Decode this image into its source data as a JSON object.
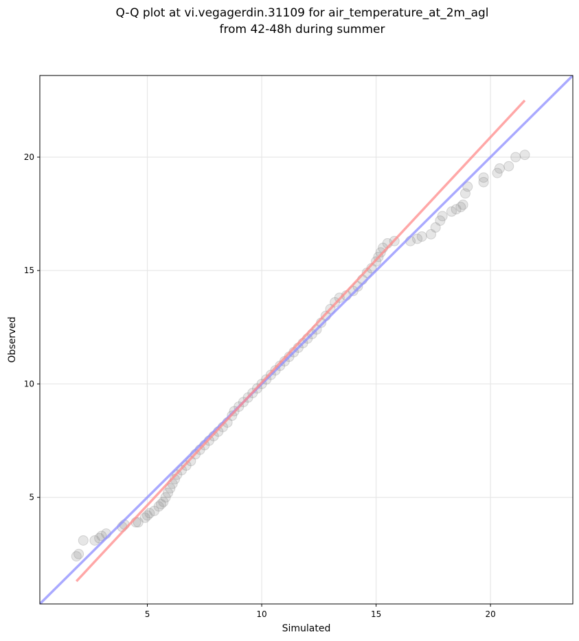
{
  "chart_data": {
    "type": "scatter",
    "title": [
      "Q-Q plot at vi.vegagerdin.31109 for air_temperature_at_2m_agl",
      "from 42-48h during summer"
    ],
    "xlabel": "Simulated",
    "ylabel": "Observed",
    "xlim": [
      0.3,
      23.6
    ],
    "ylim": [
      0.3,
      23.6
    ],
    "xticks": [
      5,
      10,
      15,
      20
    ],
    "yticks": [
      5,
      10,
      15,
      20
    ],
    "grid": true,
    "reference_lines": [
      {
        "kind": "identity",
        "color": "#8c8cff",
        "points": [
          [
            0.3,
            0.3
          ],
          [
            23.6,
            23.6
          ]
        ]
      },
      {
        "kind": "fit",
        "color": "#ff8a8a",
        "points": [
          [
            1.9,
            1.3
          ],
          [
            21.5,
            22.5
          ]
        ]
      }
    ],
    "point_color": "#808080",
    "quantile_points": [
      [
        1.9,
        2.4
      ],
      [
        2.0,
        2.5
      ],
      [
        2.2,
        3.1
      ],
      [
        2.7,
        3.1
      ],
      [
        2.9,
        3.2
      ],
      [
        3.0,
        3.3
      ],
      [
        3.2,
        3.4
      ],
      [
        3.9,
        3.7
      ],
      [
        4.0,
        3.8
      ],
      [
        4.5,
        3.9
      ],
      [
        4.6,
        3.9
      ],
      [
        4.9,
        4.1
      ],
      [
        5.0,
        4.2
      ],
      [
        5.1,
        4.3
      ],
      [
        5.3,
        4.4
      ],
      [
        5.5,
        4.6
      ],
      [
        5.6,
        4.7
      ],
      [
        5.7,
        4.8
      ],
      [
        5.8,
        5.0
      ],
      [
        5.9,
        5.2
      ],
      [
        6.0,
        5.4
      ],
      [
        6.1,
        5.6
      ],
      [
        6.2,
        5.8
      ],
      [
        6.3,
        6.0
      ],
      [
        6.5,
        6.2
      ],
      [
        6.7,
        6.4
      ],
      [
        6.9,
        6.6
      ],
      [
        7.1,
        6.9
      ],
      [
        7.3,
        7.1
      ],
      [
        7.5,
        7.3
      ],
      [
        7.7,
        7.5
      ],
      [
        7.9,
        7.7
      ],
      [
        8.1,
        7.9
      ],
      [
        8.3,
        8.1
      ],
      [
        8.5,
        8.3
      ],
      [
        8.7,
        8.6
      ],
      [
        8.8,
        8.8
      ],
      [
        9.0,
        9.0
      ],
      [
        9.2,
        9.2
      ],
      [
        9.4,
        9.4
      ],
      [
        9.6,
        9.6
      ],
      [
        9.8,
        9.8
      ],
      [
        10.0,
        10.0
      ],
      [
        10.2,
        10.2
      ],
      [
        10.4,
        10.4
      ],
      [
        10.6,
        10.6
      ],
      [
        10.8,
        10.8
      ],
      [
        11.0,
        11.0
      ],
      [
        11.2,
        11.2
      ],
      [
        11.4,
        11.4
      ],
      [
        11.6,
        11.6
      ],
      [
        11.8,
        11.8
      ],
      [
        12.0,
        12.0
      ],
      [
        12.2,
        12.2
      ],
      [
        12.4,
        12.4
      ],
      [
        12.6,
        12.7
      ],
      [
        12.8,
        13.0
      ],
      [
        13.0,
        13.3
      ],
      [
        13.2,
        13.6
      ],
      [
        13.4,
        13.8
      ],
      [
        13.7,
        13.9
      ],
      [
        14.0,
        14.1
      ],
      [
        14.2,
        14.3
      ],
      [
        14.4,
        14.6
      ],
      [
        14.6,
        14.9
      ],
      [
        14.8,
        15.1
      ],
      [
        15.0,
        15.4
      ],
      [
        15.1,
        15.6
      ],
      [
        15.2,
        15.8
      ],
      [
        15.3,
        16.0
      ],
      [
        15.5,
        16.2
      ],
      [
        15.8,
        16.3
      ],
      [
        16.5,
        16.3
      ],
      [
        16.8,
        16.4
      ],
      [
        17.0,
        16.5
      ],
      [
        17.4,
        16.6
      ],
      [
        17.6,
        16.9
      ],
      [
        17.8,
        17.2
      ],
      [
        17.9,
        17.4
      ],
      [
        18.3,
        17.6
      ],
      [
        18.5,
        17.7
      ],
      [
        18.7,
        17.8
      ],
      [
        18.8,
        17.9
      ],
      [
        18.9,
        18.4
      ],
      [
        19.0,
        18.7
      ],
      [
        19.7,
        18.9
      ],
      [
        19.7,
        19.1
      ],
      [
        20.3,
        19.3
      ],
      [
        20.4,
        19.5
      ],
      [
        20.8,
        19.6
      ],
      [
        21.1,
        20.0
      ],
      [
        21.5,
        20.1
      ]
    ]
  }
}
